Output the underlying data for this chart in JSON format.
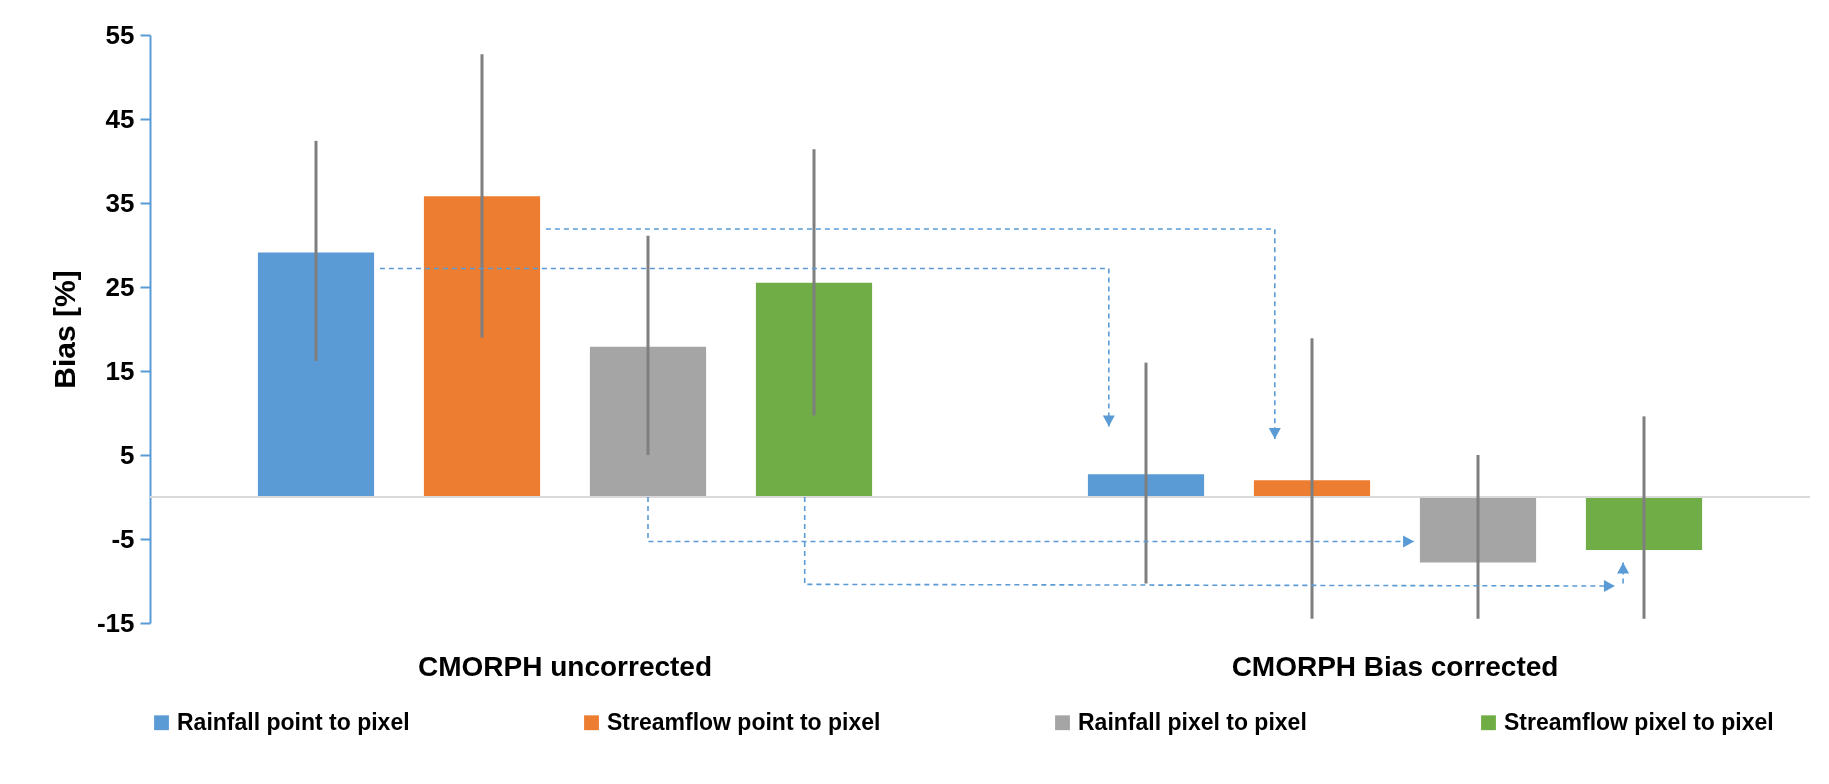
{
  "chart_data": {
    "type": "bar",
    "ylabel": "Bias [%]",
    "categories": [
      "CMORPH uncorrected",
      "CMORPH Bias corrected"
    ],
    "series": [
      {
        "name": "Rainfall point to pixel",
        "color": "#5b9bd5",
        "values": [
          29.1,
          2.7
        ],
        "errors": [
          [
            16.2,
            42.4
          ],
          [
            -10.3,
            16.0
          ]
        ]
      },
      {
        "name": "Streamflow point to pixel",
        "color": "#ed7d31",
        "values": [
          35.8,
          2.0
        ],
        "errors": [
          [
            19.0,
            52.7
          ],
          [
            -14.5,
            18.9
          ]
        ]
      },
      {
        "name": "Rainfall pixel to pixel",
        "color": "#a5a5a5",
        "values": [
          17.9,
          -7.8
        ],
        "errors": [
          [
            5.0,
            31.1
          ],
          [
            -14.5,
            5.0
          ]
        ]
      },
      {
        "name": "Streamflow pixel to pixel",
        "color": "#70ad47",
        "values": [
          25.5,
          -6.3
        ],
        "errors": [
          [
            9.7,
            41.4
          ],
          [
            -14.5,
            9.6
          ]
        ]
      }
    ],
    "ylim": [
      -15,
      55
    ],
    "yticks": [
      -15,
      -5,
      5,
      15,
      25,
      35,
      45,
      55
    ],
    "grid": false,
    "legend": "bottom",
    "ref_lines": [
      {
        "axis": "y",
        "value": 0,
        "color": "#d9d9d9"
      }
    ]
  }
}
